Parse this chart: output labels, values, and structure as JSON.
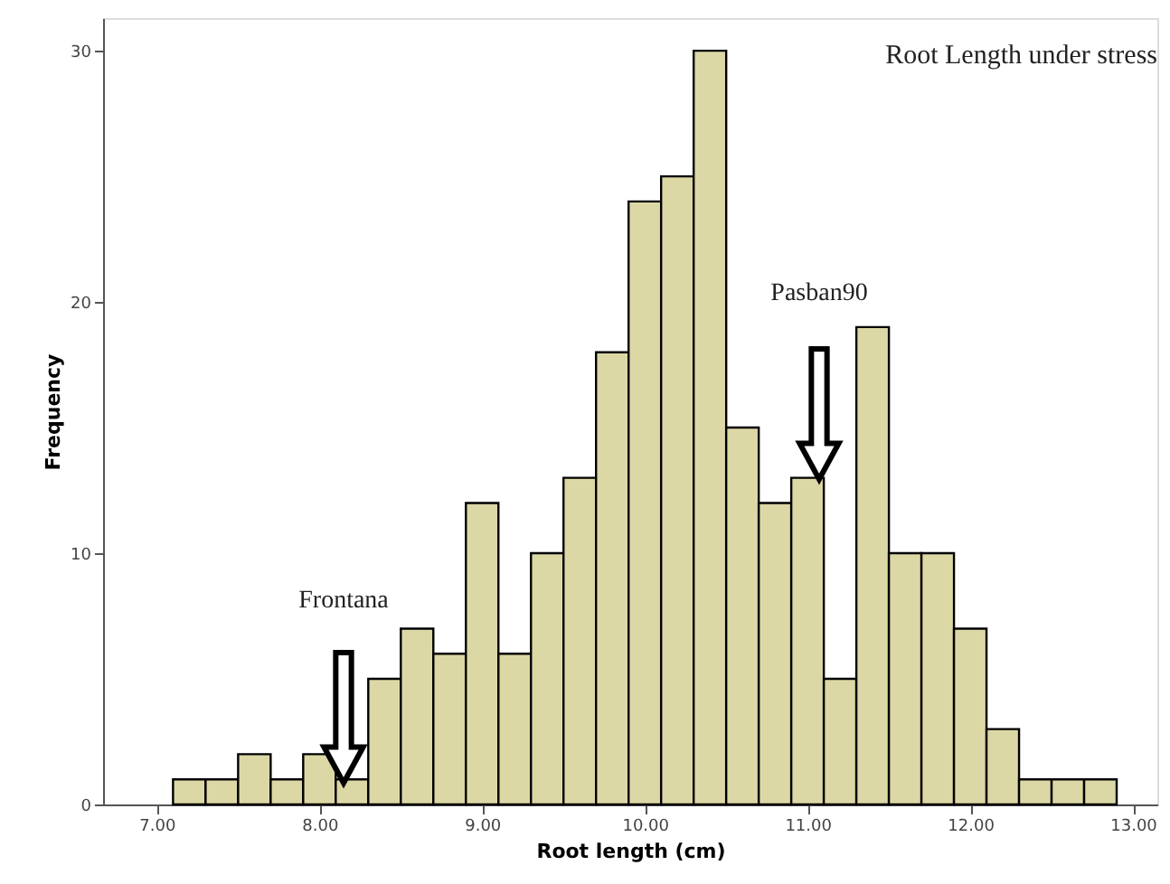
{
  "chart_data": {
    "type": "histogram",
    "title": "Root Length under stress",
    "xlabel": "Root length (cm)",
    "ylabel": "Frequency",
    "bins": [
      7.1,
      7.3,
      7.5,
      7.7,
      7.9,
      8.1,
      8.3,
      8.5,
      8.7,
      8.9,
      9.1,
      9.3,
      9.5,
      9.7,
      9.9,
      10.1,
      10.3,
      10.5,
      10.7,
      10.9,
      11.1,
      11.3,
      11.5,
      11.7,
      11.9,
      12.1,
      12.3,
      12.5,
      12.7,
      12.9
    ],
    "values": [
      1,
      1,
      2,
      1,
      2,
      1,
      5,
      7,
      6,
      12,
      6,
      10,
      13,
      18,
      24,
      25,
      30,
      15,
      12,
      13,
      5,
      19,
      10,
      10,
      7,
      3,
      1,
      1,
      1
    ],
    "color": "#dcd8a6",
    "xlim": [
      6.67,
      13.15
    ],
    "xticks": [
      {
        "value": 7,
        "label": "7.00"
      },
      {
        "value": 8,
        "label": "8.00"
      },
      {
        "value": 9,
        "label": "9.00"
      },
      {
        "value": 10,
        "label": "10.00"
      },
      {
        "value": 11,
        "label": "11.00"
      },
      {
        "value": 12,
        "label": "12.00"
      },
      {
        "value": 13,
        "label": "13.00"
      }
    ],
    "ylim": [
      0,
      31.3
    ],
    "yticks": [
      0,
      10,
      20,
      30
    ],
    "grid": false,
    "annotations": [
      "Frontana",
      "Pasban90"
    ]
  }
}
